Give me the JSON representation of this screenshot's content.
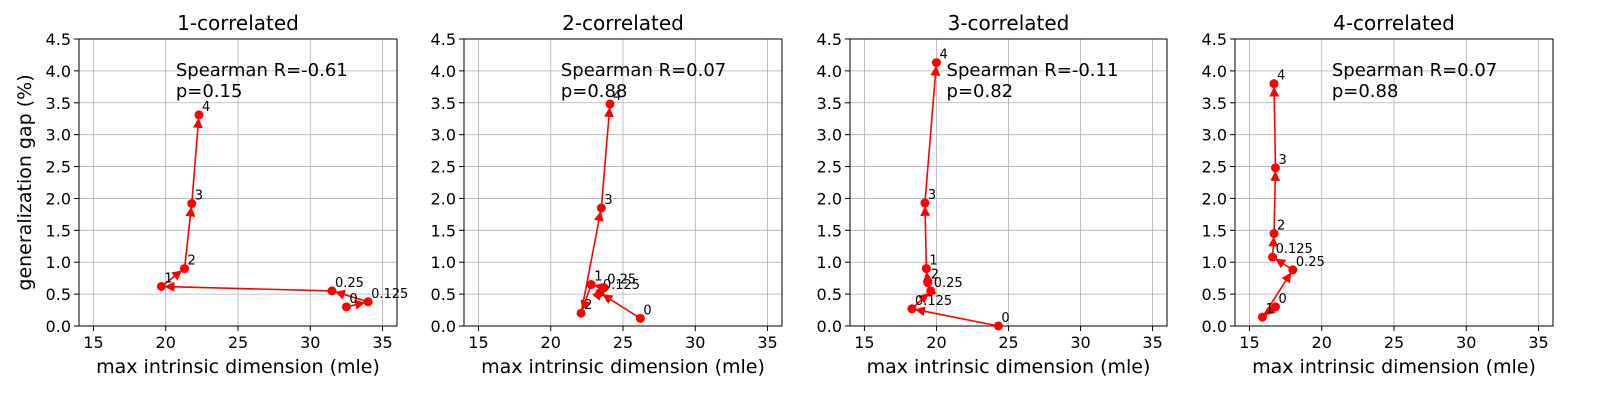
{
  "chart_data": [
    {
      "type": "line",
      "title": "1-correlated",
      "xlabel": "max intrinsic dimension (mle)",
      "ylabel": "generalization gap (%)",
      "xlim": [
        14,
        36
      ],
      "ylim": [
        0,
        4.5
      ],
      "xticks": [
        "15",
        "20",
        "25",
        "30",
        "35"
      ],
      "yticks": [
        "0.0",
        "0.5",
        "1.0",
        "1.5",
        "2.0",
        "2.5",
        "3.0",
        "3.5",
        "4.0",
        "4.5"
      ],
      "grid": true,
      "color": "#ff0000",
      "annotation": [
        "Spearman R=-0.61",
        "p=0.15"
      ],
      "points": [
        {
          "label": "0",
          "x": 32.5,
          "y": 0.3
        },
        {
          "label": "0.125",
          "x": 34.0,
          "y": 0.38
        },
        {
          "label": "0.25",
          "x": 31.5,
          "y": 0.55
        },
        {
          "label": "1",
          "x": 19.7,
          "y": 0.62
        },
        {
          "label": "2",
          "x": 21.3,
          "y": 0.9
        },
        {
          "label": "3",
          "x": 21.8,
          "y": 1.92
        },
        {
          "label": "4",
          "x": 22.3,
          "y": 3.31
        }
      ]
    },
    {
      "type": "line",
      "title": "2-correlated",
      "xlabel": "max intrinsic dimension (mle)",
      "ylabel": "",
      "xlim": [
        14,
        36
      ],
      "ylim": [
        0,
        4.5
      ],
      "xticks": [
        "15",
        "20",
        "25",
        "30",
        "35"
      ],
      "yticks": [
        "0.0",
        "0.5",
        "1.0",
        "1.5",
        "2.0",
        "2.5",
        "3.0",
        "3.5",
        "4.0",
        "4.5"
      ],
      "grid": true,
      "color": "#ff0000",
      "annotation": [
        "Spearman R=0.07",
        "p=0.88"
      ],
      "points": [
        {
          "label": "0",
          "x": 26.2,
          "y": 0.12
        },
        {
          "label": "0.125",
          "x": 23.4,
          "y": 0.52
        },
        {
          "label": "0.25",
          "x": 23.7,
          "y": 0.6
        },
        {
          "label": "1",
          "x": 22.8,
          "y": 0.65
        },
        {
          "label": "2",
          "x": 22.1,
          "y": 0.2
        },
        {
          "label": "3",
          "x": 23.5,
          "y": 1.85
        },
        {
          "label": "4",
          "x": 24.1,
          "y": 3.48
        }
      ]
    },
    {
      "type": "line",
      "title": "3-correlated",
      "xlabel": "max intrinsic dimension (mle)",
      "ylabel": "",
      "xlim": [
        14,
        36
      ],
      "ylim": [
        0,
        4.5
      ],
      "xticks": [
        "15",
        "20",
        "25",
        "30",
        "35"
      ],
      "yticks": [
        "0.0",
        "0.5",
        "1.0",
        "1.5",
        "2.0",
        "2.5",
        "3.0",
        "3.5",
        "4.0",
        "4.5"
      ],
      "grid": true,
      "color": "#ff0000",
      "annotation": [
        "Spearman R=-0.11",
        "p=0.82"
      ],
      "points": [
        {
          "label": "0",
          "x": 24.3,
          "y": 0.0
        },
        {
          "label": "0.125",
          "x": 18.3,
          "y": 0.27
        },
        {
          "label": "0.25",
          "x": 19.6,
          "y": 0.55
        },
        {
          "label": "2",
          "x": 19.4,
          "y": 0.68
        },
        {
          "label": "1",
          "x": 19.3,
          "y": 0.9
        },
        {
          "label": "3",
          "x": 19.2,
          "y": 1.93
        },
        {
          "label": "4",
          "x": 20.0,
          "y": 4.13
        }
      ]
    },
    {
      "type": "line",
      "title": "4-correlated",
      "xlabel": "max intrinsic dimension (mle)",
      "ylabel": "",
      "xlim": [
        14,
        36
      ],
      "ylim": [
        0,
        4.5
      ],
      "xticks": [
        "15",
        "20",
        "25",
        "30",
        "35"
      ],
      "yticks": [
        "0.0",
        "0.5",
        "1.0",
        "1.5",
        "2.0",
        "2.5",
        "3.0",
        "3.5",
        "4.0",
        "4.5"
      ],
      "grid": true,
      "color": "#ff0000",
      "annotation": [
        "Spearman R=0.07",
        "p=0.88"
      ],
      "points": [
        {
          "label": "0",
          "x": 16.8,
          "y": 0.3
        },
        {
          "label": "1",
          "x": 15.9,
          "y": 0.14
        },
        {
          "label": "0.25",
          "x": 18.0,
          "y": 0.88
        },
        {
          "label": "0.125",
          "x": 16.6,
          "y": 1.08
        },
        {
          "label": "2",
          "x": 16.7,
          "y": 1.45
        },
        {
          "label": "3",
          "x": 16.8,
          "y": 2.48
        },
        {
          "label": "4",
          "x": 16.7,
          "y": 3.8
        }
      ]
    }
  ]
}
